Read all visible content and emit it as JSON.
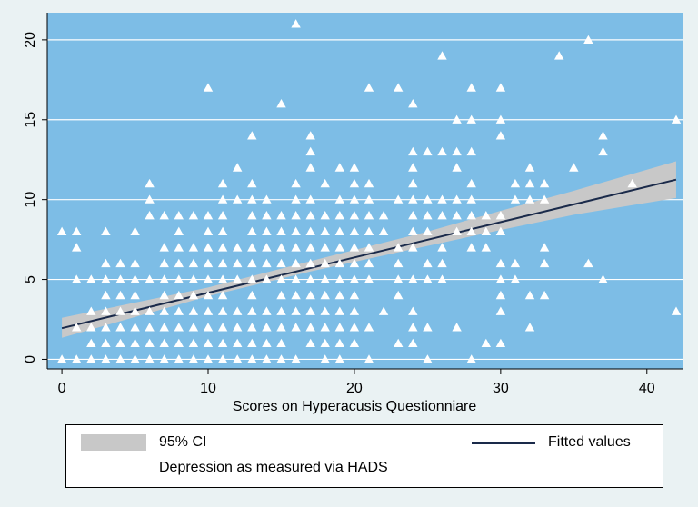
{
  "chart_data": {
    "type": "scatter",
    "xlabel": "Scores on Hyperacusis Questionniare",
    "ylabel": "",
    "xlim": [
      -1,
      42.5
    ],
    "ylim": [
      -0.6,
      21.7
    ],
    "xticks": [
      0,
      10,
      20,
      30,
      40
    ],
    "yticks": [
      0,
      5,
      10,
      15,
      20
    ],
    "grid": "horizontal",
    "legend_position": "bottom",
    "colors": {
      "background": "#eaf2f3",
      "plot_area": "#7dbde6",
      "points": "#ffffff",
      "ci_band": "#c8c8c8",
      "fit_line": "#1a2a4a",
      "grid": "#ffffff"
    },
    "fit": {
      "x_start": 0,
      "y_start": 1.95,
      "x_end": 42,
      "y_end": 11.25
    },
    "ci": {
      "x": [
        0,
        10,
        17,
        25,
        30,
        35,
        42
      ],
      "lower": [
        1.35,
        3.95,
        5.5,
        7.1,
        8.1,
        9.05,
        10.1
      ],
      "upper": [
        2.6,
        4.5,
        6.15,
        8.0,
        9.3,
        10.55,
        12.4
      ]
    },
    "series": [
      {
        "name": "Depression as measured via HADS",
        "marker": "triangle",
        "points": [
          [
            0,
            0
          ],
          [
            0,
            8
          ],
          [
            1,
            0
          ],
          [
            1,
            2
          ],
          [
            1,
            5
          ],
          [
            1,
            7
          ],
          [
            1,
            8
          ],
          [
            2,
            0
          ],
          [
            2,
            1
          ],
          [
            2,
            2
          ],
          [
            2,
            3
          ],
          [
            2,
            5
          ],
          [
            3,
            0
          ],
          [
            3,
            1
          ],
          [
            3,
            2
          ],
          [
            3,
            3
          ],
          [
            3,
            4
          ],
          [
            3,
            5
          ],
          [
            3,
            6
          ],
          [
            3,
            8
          ],
          [
            4,
            0
          ],
          [
            4,
            1
          ],
          [
            4,
            2
          ],
          [
            4,
            3
          ],
          [
            4,
            4
          ],
          [
            4,
            5
          ],
          [
            4,
            6
          ],
          [
            5,
            0
          ],
          [
            5,
            1
          ],
          [
            5,
            2
          ],
          [
            5,
            3
          ],
          [
            5,
            4
          ],
          [
            5,
            5
          ],
          [
            5,
            6
          ],
          [
            5,
            8
          ],
          [
            6,
            0
          ],
          [
            6,
            1
          ],
          [
            6,
            2
          ],
          [
            6,
            3
          ],
          [
            6,
            5
          ],
          [
            6,
            9
          ],
          [
            6,
            10
          ],
          [
            6,
            11
          ],
          [
            7,
            0
          ],
          [
            7,
            1
          ],
          [
            7,
            2
          ],
          [
            7,
            3
          ],
          [
            7,
            4
          ],
          [
            7,
            5
          ],
          [
            7,
            6
          ],
          [
            7,
            7
          ],
          [
            7,
            9
          ],
          [
            8,
            0
          ],
          [
            8,
            1
          ],
          [
            8,
            2
          ],
          [
            8,
            3
          ],
          [
            8,
            4
          ],
          [
            8,
            5
          ],
          [
            8,
            6
          ],
          [
            8,
            7
          ],
          [
            8,
            8
          ],
          [
            8,
            9
          ],
          [
            9,
            0
          ],
          [
            9,
            1
          ],
          [
            9,
            2
          ],
          [
            9,
            3
          ],
          [
            9,
            4
          ],
          [
            9,
            5
          ],
          [
            9,
            6
          ],
          [
            9,
            7
          ],
          [
            9,
            9
          ],
          [
            10,
            0
          ],
          [
            10,
            1
          ],
          [
            10,
            2
          ],
          [
            10,
            3
          ],
          [
            10,
            4
          ],
          [
            10,
            5
          ],
          [
            10,
            6
          ],
          [
            10,
            7
          ],
          [
            10,
            8
          ],
          [
            10,
            9
          ],
          [
            10,
            17
          ],
          [
            11,
            0
          ],
          [
            11,
            1
          ],
          [
            11,
            2
          ],
          [
            11,
            3
          ],
          [
            11,
            4
          ],
          [
            11,
            5
          ],
          [
            11,
            6
          ],
          [
            11,
            7
          ],
          [
            11,
            8
          ],
          [
            11,
            9
          ],
          [
            11,
            10
          ],
          [
            11,
            11
          ],
          [
            12,
            0
          ],
          [
            12,
            1
          ],
          [
            12,
            2
          ],
          [
            12,
            3
          ],
          [
            12,
            5
          ],
          [
            12,
            6
          ],
          [
            12,
            7
          ],
          [
            12,
            10
          ],
          [
            12,
            12
          ],
          [
            13,
            0
          ],
          [
            13,
            1
          ],
          [
            13,
            2
          ],
          [
            13,
            3
          ],
          [
            13,
            4
          ],
          [
            13,
            5
          ],
          [
            13,
            6
          ],
          [
            13,
            7
          ],
          [
            13,
            8
          ],
          [
            13,
            9
          ],
          [
            13,
            10
          ],
          [
            13,
            11
          ],
          [
            13,
            14
          ],
          [
            14,
            0
          ],
          [
            14,
            1
          ],
          [
            14,
            2
          ],
          [
            14,
            3
          ],
          [
            14,
            5
          ],
          [
            14,
            6
          ],
          [
            14,
            7
          ],
          [
            14,
            8
          ],
          [
            14,
            9
          ],
          [
            14,
            10
          ],
          [
            15,
            0
          ],
          [
            15,
            1
          ],
          [
            15,
            2
          ],
          [
            15,
            3
          ],
          [
            15,
            4
          ],
          [
            15,
            5
          ],
          [
            15,
            6
          ],
          [
            15,
            7
          ],
          [
            15,
            8
          ],
          [
            15,
            9
          ],
          [
            15,
            16
          ],
          [
            16,
            0
          ],
          [
            16,
            2
          ],
          [
            16,
            3
          ],
          [
            16,
            4
          ],
          [
            16,
            5
          ],
          [
            16,
            6
          ],
          [
            16,
            7
          ],
          [
            16,
            8
          ],
          [
            16,
            9
          ],
          [
            16,
            10
          ],
          [
            16,
            11
          ],
          [
            16,
            21
          ],
          [
            17,
            1
          ],
          [
            17,
            2
          ],
          [
            17,
            3
          ],
          [
            17,
            4
          ],
          [
            17,
            5
          ],
          [
            17,
            6
          ],
          [
            17,
            7
          ],
          [
            17,
            8
          ],
          [
            17,
            9
          ],
          [
            17,
            10
          ],
          [
            17,
            12
          ],
          [
            17,
            13
          ],
          [
            17,
            14
          ],
          [
            18,
            0
          ],
          [
            18,
            1
          ],
          [
            18,
            2
          ],
          [
            18,
            3
          ],
          [
            18,
            4
          ],
          [
            18,
            5
          ],
          [
            18,
            6
          ],
          [
            18,
            7
          ],
          [
            18,
            8
          ],
          [
            18,
            9
          ],
          [
            18,
            11
          ],
          [
            19,
            0
          ],
          [
            19,
            1
          ],
          [
            19,
            2
          ],
          [
            19,
            3
          ],
          [
            19,
            4
          ],
          [
            19,
            5
          ],
          [
            19,
            6
          ],
          [
            19,
            7
          ],
          [
            19,
            8
          ],
          [
            19,
            9
          ],
          [
            19,
            10
          ],
          [
            19,
            12
          ],
          [
            20,
            1
          ],
          [
            20,
            2
          ],
          [
            20,
            3
          ],
          [
            20,
            4
          ],
          [
            20,
            5
          ],
          [
            20,
            6
          ],
          [
            20,
            7
          ],
          [
            20,
            8
          ],
          [
            20,
            9
          ],
          [
            20,
            10
          ],
          [
            20,
            11
          ],
          [
            20,
            12
          ],
          [
            21,
            0
          ],
          [
            21,
            2
          ],
          [
            21,
            5
          ],
          [
            21,
            6
          ],
          [
            21,
            7
          ],
          [
            21,
            8
          ],
          [
            21,
            9
          ],
          [
            21,
            10
          ],
          [
            21,
            11
          ],
          [
            21,
            17
          ],
          [
            22,
            3
          ],
          [
            22,
            8
          ],
          [
            22,
            9
          ],
          [
            23,
            1
          ],
          [
            23,
            4
          ],
          [
            23,
            5
          ],
          [
            23,
            6
          ],
          [
            23,
            7
          ],
          [
            23,
            10
          ],
          [
            23,
            17
          ],
          [
            24,
            1
          ],
          [
            24,
            2
          ],
          [
            24,
            3
          ],
          [
            24,
            5
          ],
          [
            24,
            7
          ],
          [
            24,
            8
          ],
          [
            24,
            9
          ],
          [
            24,
            10
          ],
          [
            24,
            11
          ],
          [
            24,
            12
          ],
          [
            24,
            13
          ],
          [
            24,
            16
          ],
          [
            25,
            0
          ],
          [
            25,
            2
          ],
          [
            25,
            5
          ],
          [
            25,
            6
          ],
          [
            25,
            8
          ],
          [
            25,
            9
          ],
          [
            25,
            10
          ],
          [
            25,
            13
          ],
          [
            26,
            5
          ],
          [
            26,
            6
          ],
          [
            26,
            7
          ],
          [
            26,
            9
          ],
          [
            26,
            10
          ],
          [
            26,
            13
          ],
          [
            26,
            19
          ],
          [
            27,
            2
          ],
          [
            27,
            8
          ],
          [
            27,
            9
          ],
          [
            27,
            10
          ],
          [
            27,
            12
          ],
          [
            27,
            13
          ],
          [
            27,
            15
          ],
          [
            28,
            0
          ],
          [
            28,
            7
          ],
          [
            28,
            8
          ],
          [
            28,
            9
          ],
          [
            28,
            10
          ],
          [
            28,
            11
          ],
          [
            28,
            13
          ],
          [
            28,
            15
          ],
          [
            28,
            17
          ],
          [
            29,
            1
          ],
          [
            29,
            7
          ],
          [
            29,
            8
          ],
          [
            29,
            9
          ],
          [
            30,
            1
          ],
          [
            30,
            3
          ],
          [
            30,
            4
          ],
          [
            30,
            5
          ],
          [
            30,
            6
          ],
          [
            30,
            8
          ],
          [
            30,
            9
          ],
          [
            30,
            14
          ],
          [
            30,
            15
          ],
          [
            30,
            17
          ],
          [
            31,
            5
          ],
          [
            31,
            6
          ],
          [
            31,
            10
          ],
          [
            31,
            11
          ],
          [
            32,
            2
          ],
          [
            32,
            4
          ],
          [
            32,
            10
          ],
          [
            32,
            11
          ],
          [
            32,
            12
          ],
          [
            33,
            4
          ],
          [
            33,
            6
          ],
          [
            33,
            7
          ],
          [
            33,
            10
          ],
          [
            33,
            11
          ],
          [
            34,
            19
          ],
          [
            35,
            12
          ],
          [
            36,
            6
          ],
          [
            36,
            20
          ],
          [
            37,
            5
          ],
          [
            37,
            13
          ],
          [
            37,
            14
          ],
          [
            39,
            11
          ],
          [
            42,
            3
          ],
          [
            42,
            15
          ]
        ]
      }
    ]
  },
  "legend": {
    "ci_label": "95% CI",
    "fit_label": "Fitted values",
    "scatter_label": "Depression as measured via HADS"
  }
}
